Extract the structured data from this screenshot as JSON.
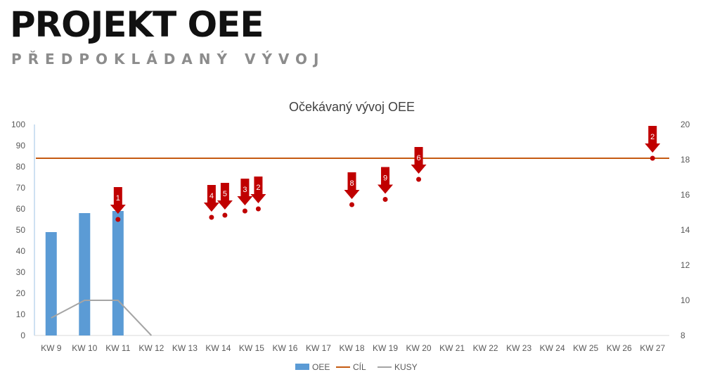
{
  "page": {
    "title": "PROJEKT OEE",
    "subtitle": "PŘEDPOKLÁDANÝ VÝVOJ"
  },
  "chart_data": {
    "type": "bar",
    "title": "Očekávaný vývoj OEE",
    "categories": [
      "KW 9",
      "KW 10",
      "KW 11",
      "KW 12",
      "KW 13",
      "KW 14",
      "KW 15",
      "KW 16",
      "KW 17",
      "KW 18",
      "KW 19",
      "KW 20",
      "KW 21",
      "KW 22",
      "KW 23",
      "KW 24",
      "KW 25",
      "KW 26",
      "KW 27"
    ],
    "y_left": {
      "min": 0,
      "max": 100,
      "step": 10
    },
    "y_right": {
      "min": 8,
      "max": 20,
      "step": 2
    },
    "series": [
      {
        "name": "OEE",
        "kind": "bar",
        "axis": "left",
        "color": "#5B9BD5",
        "values": [
          49,
          58,
          59,
          null,
          null,
          null,
          null,
          null,
          null,
          null,
          null,
          null,
          null,
          null,
          null,
          null,
          null,
          null,
          null
        ]
      },
      {
        "name": "CÍL",
        "kind": "line",
        "axis": "left",
        "color": "#C55A11",
        "values": [
          84,
          84,
          84,
          84,
          84,
          84,
          84,
          84,
          84,
          84,
          84,
          84,
          84,
          84,
          84,
          84,
          84,
          84,
          84
        ]
      },
      {
        "name": "KUSY",
        "kind": "line",
        "axis": "right",
        "color": "#A5A5A5",
        "values": [
          9,
          10,
          10,
          8,
          null,
          null,
          null,
          null,
          null,
          null,
          null,
          null,
          null,
          null,
          null,
          null,
          null,
          null,
          null
        ]
      }
    ],
    "legend": {
      "position": "bottom",
      "items": [
        "OEE",
        "CÍL",
        "KUSY"
      ]
    },
    "annotations": {
      "color": "#C00000",
      "points": [
        {
          "category": "KW 11",
          "offset": 0,
          "value": 55,
          "label": "1"
        },
        {
          "category": "KW 14",
          "offset": -0.2,
          "value": 56,
          "label": "4"
        },
        {
          "category": "KW 14",
          "offset": 0.2,
          "value": 57,
          "label": "5"
        },
        {
          "category": "KW 15",
          "offset": -0.2,
          "value": 59,
          "label": "3"
        },
        {
          "category": "KW 15",
          "offset": 0.2,
          "value": 60,
          "label": "2"
        },
        {
          "category": "KW 18",
          "offset": 0,
          "value": 62,
          "label": "8"
        },
        {
          "category": "KW 19",
          "offset": 0,
          "value": 64.5,
          "label": "9"
        },
        {
          "category": "KW 20",
          "offset": 0,
          "value": 74,
          "label": "6"
        },
        {
          "category": "KW 27",
          "offset": 0,
          "value": 84,
          "label": "2"
        }
      ]
    }
  }
}
